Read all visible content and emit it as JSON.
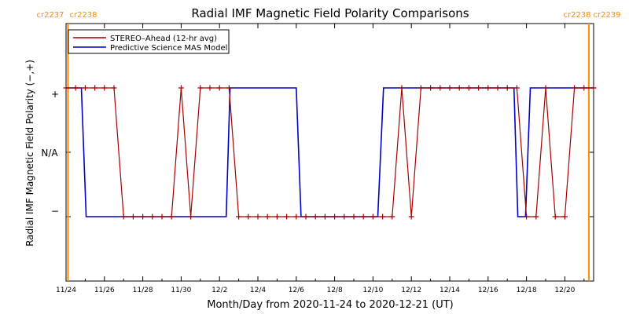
{
  "chart_data": {
    "type": "line",
    "title": "Radial IMF Magnetic Field Polarity Comparisons",
    "xlabel": "Month/Day from 2020-11-24 to 2020-12-21 (UT)",
    "ylabel": "Radial IMF Magnetic Field Polarity (−,+)",
    "x_tick_labels": [
      "11/24",
      "11/26",
      "11/28",
      "11/30",
      "12/2",
      "12/4",
      "12/6",
      "12/8",
      "12/10",
      "12/12",
      "12/14",
      "12/16",
      "12/18",
      "12/20"
    ],
    "x_ticks_day": [
      0,
      2,
      4,
      6,
      8,
      10,
      12,
      14,
      16,
      18,
      20,
      22,
      24,
      26
    ],
    "xlim_days": [
      0,
      27.5
    ],
    "y_tick_labels": [
      "+",
      "N/A",
      "−"
    ],
    "y_tick_values": [
      1,
      0,
      -1
    ],
    "ylim": [
      -2,
      2
    ],
    "legend_position": "top-left",
    "carrington_rotations": [
      {
        "day": 0.1,
        "label_left": "cr2237",
        "label_right": "cr2238"
      },
      {
        "day": 27.25,
        "label_left": "cr2238",
        "label_right": "cr2239"
      }
    ],
    "series": [
      {
        "name": "STEREO–Ahead (12-hr avg)",
        "color": "#aa0000",
        "marker": "+",
        "x_days": [
          0,
          0.5,
          1,
          1.5,
          2,
          2.5,
          3,
          3.5,
          4,
          4.5,
          5,
          5.5,
          6,
          6.5,
          7,
          7.5,
          8,
          8.5,
          9,
          9.5,
          10,
          10.5,
          11,
          11.5,
          12,
          12.5,
          13,
          13.5,
          14,
          14.5,
          15,
          15.5,
          16,
          16.5,
          17,
          17.5,
          18,
          18.5,
          19,
          19.5,
          20,
          20.5,
          21,
          21.5,
          22,
          22.5,
          23,
          23.5,
          24,
          24.5,
          25,
          25.5,
          26,
          26.5,
          27,
          27.5
        ],
        "y_polarity": [
          1,
          1,
          1,
          1,
          1,
          1,
          -1,
          -1,
          -1,
          -1,
          -1,
          -1,
          1,
          -1,
          1,
          1,
          1,
          1,
          -1,
          -1,
          -1,
          -1,
          -1,
          -1,
          -1,
          -1,
          -1,
          -1,
          -1,
          -1,
          -1,
          -1,
          -1,
          -1,
          -1,
          1,
          -1,
          1,
          1,
          1,
          1,
          1,
          1,
          1,
          1,
          1,
          1,
          1,
          -1,
          -1,
          1,
          -1,
          -1,
          1,
          1,
          1
        ]
      },
      {
        "name": "Predictive Science MAS Model",
        "color": "#0000cc",
        "x_days": [
          0,
          0.8,
          1.05,
          8.35,
          8.55,
          12.0,
          12.25,
          16.25,
          16.55,
          23.35,
          23.55,
          23.95,
          24.2,
          27.5
        ],
        "y_polarity": [
          1,
          1,
          -1,
          -1,
          1,
          1,
          -1,
          -1,
          1,
          1,
          -1,
          -1,
          1,
          1
        ]
      }
    ]
  }
}
